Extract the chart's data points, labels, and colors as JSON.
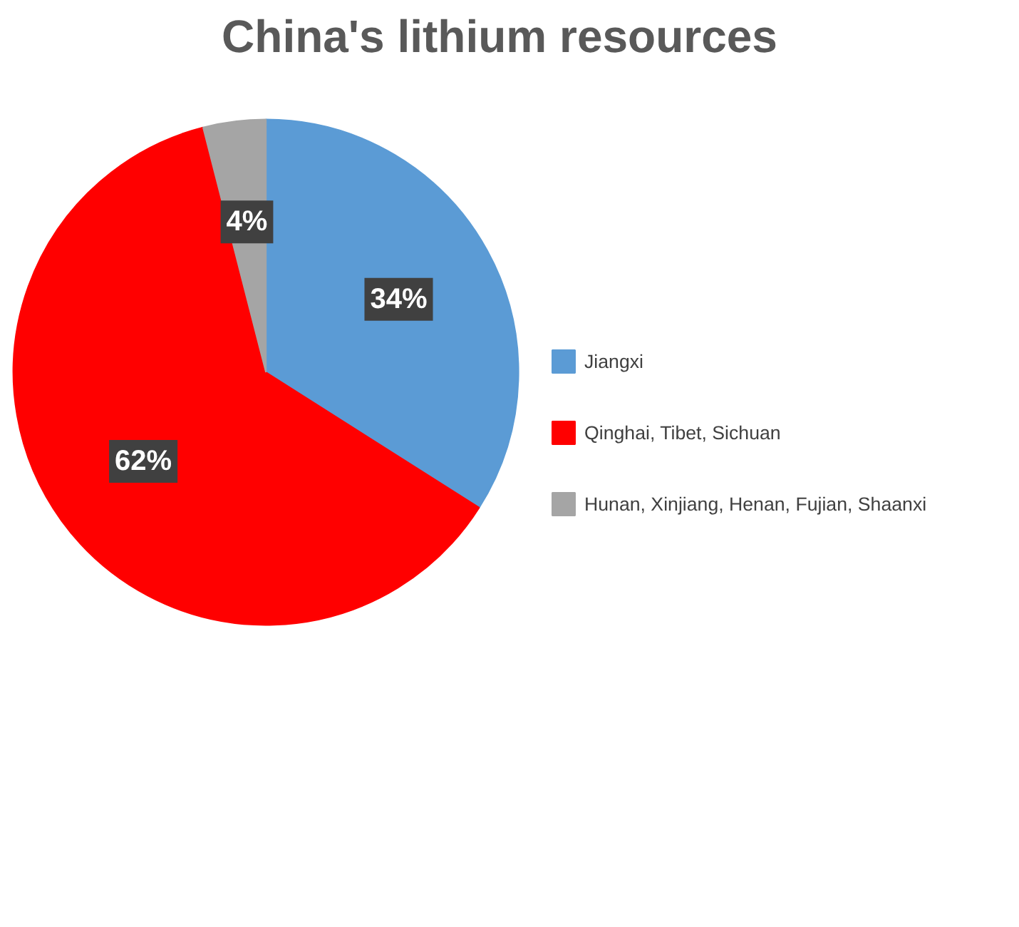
{
  "chart_data": {
    "type": "pie",
    "title": "China's lithium resources",
    "categories": [
      "Jiangxi",
      "Qinghai, Tibet, Sichuan",
      "Hunan, Xinjiang, Henan, Fujian, Shaanxi"
    ],
    "values": [
      34,
      62,
      4
    ],
    "colors": [
      "#5b9bd5",
      "#ff0000",
      "#a5a5a5"
    ],
    "value_labels": [
      "34%",
      "62%",
      "4%"
    ],
    "legend": "right"
  }
}
